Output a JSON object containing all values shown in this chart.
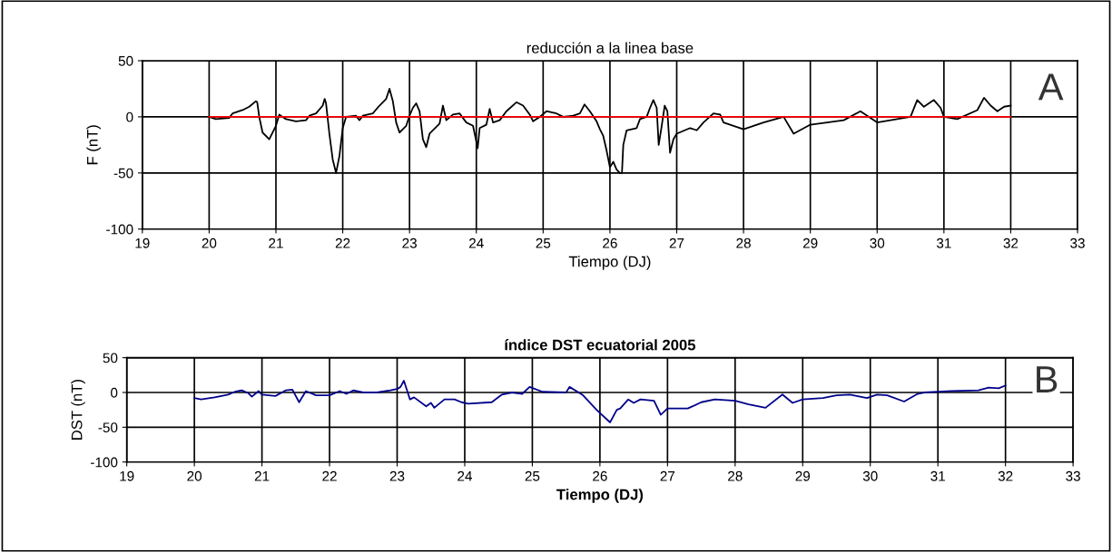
{
  "chart_data": [
    {
      "type": "line",
      "title": "reducción a la linea base",
      "xlabel": "Tiempo (DJ)",
      "ylabel": "F (nT)",
      "xlim": [
        19,
        33
      ],
      "xticks": [
        19,
        20,
        21,
        22,
        23,
        24,
        25,
        26,
        27,
        28,
        29,
        30,
        31,
        32,
        33
      ],
      "ylim": [
        -100,
        50
      ],
      "yticks": [
        -100,
        -50,
        0,
        50
      ],
      "grid": true,
      "annotations": [
        "A"
      ],
      "series": [
        {
          "color": "#000000",
          "x": [
            20.0,
            20.1,
            20.3,
            20.35,
            20.5,
            20.6,
            20.7,
            20.72,
            20.75,
            20.8,
            20.9,
            21.0,
            21.05,
            21.15,
            21.3,
            21.45,
            21.5,
            21.6,
            21.7,
            21.73,
            21.75,
            21.8,
            21.85,
            21.9,
            21.95,
            22.0,
            22.05,
            22.2,
            22.25,
            22.3,
            22.45,
            22.55,
            22.65,
            22.7,
            22.75,
            22.8,
            22.85,
            22.95,
            23.0,
            23.05,
            23.1,
            23.15,
            23.2,
            23.25,
            23.3,
            23.45,
            23.5,
            23.55,
            23.65,
            23.75,
            23.85,
            23.95,
            24.0,
            24.02,
            24.05,
            24.15,
            24.2,
            24.25,
            24.35,
            24.45,
            24.6,
            24.7,
            24.8,
            24.85,
            24.95,
            25.05,
            25.2,
            25.3,
            25.45,
            25.55,
            25.62,
            25.7,
            25.8,
            25.85,
            25.9,
            25.95,
            26.0,
            26.05,
            26.1,
            26.15,
            26.18,
            26.2,
            26.25,
            26.4,
            26.45,
            26.55,
            26.6,
            26.65,
            26.7,
            26.73,
            26.77,
            26.82,
            26.86,
            26.9,
            26.95,
            27.0,
            27.2,
            27.3,
            27.4,
            27.55,
            27.65,
            27.7,
            28.0,
            28.3,
            28.6,
            28.75,
            29.0,
            29.5,
            29.75,
            30.0,
            30.3,
            30.5,
            30.6,
            30.7,
            30.85,
            30.95,
            31.0,
            31.2,
            31.5,
            31.6,
            31.7,
            31.8,
            31.9,
            32.0
          ],
          "values": [
            0,
            -2,
            -1,
            3,
            6,
            9,
            14,
            13,
            0,
            -14,
            -20,
            -8,
            2,
            -2,
            -4,
            -3,
            1,
            3,
            10,
            16,
            12,
            -15,
            -38,
            -50,
            -35,
            -10,
            0,
            1,
            -3,
            1,
            3,
            10,
            16,
            25,
            14,
            -5,
            -14,
            -8,
            1,
            8,
            12,
            5,
            -20,
            -27,
            -15,
            -6,
            10,
            -3,
            2,
            3,
            -5,
            -8,
            -22,
            -28,
            -10,
            -7,
            7,
            -5,
            -3,
            5,
            13,
            10,
            2,
            -4,
            0,
            5,
            3,
            0,
            1,
            3,
            11,
            5,
            -4,
            -11,
            -17,
            -30,
            -45,
            -40,
            -47,
            -50,
            -50,
            -25,
            -12,
            -10,
            -2,
            0,
            8,
            15,
            8,
            -25,
            -10,
            10,
            5,
            -32,
            -20,
            -15,
            -10,
            -12,
            -5,
            3,
            2,
            -5,
            -11,
            -5,
            0,
            -15,
            -7,
            -3,
            5,
            -5,
            -2,
            0,
            15,
            9,
            15,
            8,
            0,
            -2,
            6,
            17,
            10,
            5,
            9,
            10
          ]
        },
        {
          "color": "#ff0000",
          "x": [
            20,
            32
          ],
          "values": [
            0,
            0
          ]
        }
      ]
    },
    {
      "type": "line",
      "title": "índice DST ecuatorial 2005",
      "xlabel": "Tiempo (DJ)",
      "ylabel": "DST (nT)",
      "xlim": [
        19,
        33
      ],
      "xticks": [
        19,
        20,
        21,
        22,
        23,
        24,
        25,
        26,
        27,
        28,
        29,
        30,
        31,
        32,
        33
      ],
      "ylim": [
        -100,
        50
      ],
      "yticks": [
        -100,
        -50,
        0,
        50
      ],
      "grid": true,
      "annotations": [
        "B"
      ],
      "series": [
        {
          "color": "#00008b",
          "x": [
            20.0,
            20.1,
            20.3,
            20.5,
            20.6,
            20.7,
            20.8,
            20.85,
            20.95,
            21.0,
            21.2,
            21.35,
            21.45,
            21.55,
            21.65,
            21.8,
            22.0,
            22.15,
            22.25,
            22.35,
            22.5,
            22.7,
            22.9,
            23.0,
            23.05,
            23.1,
            23.19,
            23.25,
            23.43,
            23.5,
            23.55,
            23.7,
            23.85,
            23.95,
            24.05,
            24.4,
            24.55,
            24.7,
            24.85,
            24.96,
            25.15,
            25.5,
            25.55,
            25.75,
            25.95,
            26.15,
            26.25,
            26.3,
            26.42,
            26.5,
            26.6,
            26.8,
            26.9,
            27.0,
            27.3,
            27.5,
            27.7,
            28.0,
            28.2,
            28.45,
            28.7,
            28.85,
            29.0,
            29.3,
            29.5,
            29.7,
            29.95,
            30.1,
            30.25,
            30.5,
            30.7,
            30.8,
            31.2,
            31.6,
            31.75,
            31.9,
            32.0
          ],
          "values": [
            -8,
            -10,
            -7,
            -3,
            1,
            3,
            -1,
            -6,
            2,
            -3,
            -5,
            3,
            4,
            -14,
            2,
            -4,
            -4,
            2,
            -2,
            3,
            0,
            0,
            3,
            5,
            8,
            17,
            -10,
            -7,
            -20,
            -15,
            -22,
            -10,
            -10,
            -14,
            -16,
            -14,
            -3,
            0,
            -2,
            8,
            1,
            0,
            8,
            -4,
            -25,
            -43,
            -25,
            -23,
            -10,
            -15,
            -10,
            -12,
            -32,
            -23,
            -23,
            -14,
            -10,
            -12,
            -17,
            -22,
            -3,
            -15,
            -10,
            -8,
            -4,
            -3,
            -8,
            -3,
            -4,
            -13,
            -2,
            0,
            2,
            3,
            7,
            6,
            10
          ]
        }
      ]
    }
  ]
}
